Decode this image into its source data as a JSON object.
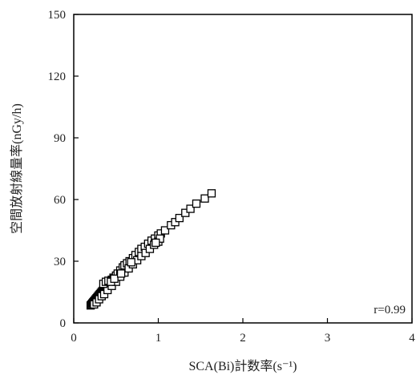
{
  "chart_data": {
    "type": "scatter",
    "title": "",
    "xlabel": "SCA(Bi)計数率(s⁻¹)",
    "ylabel": "空間放射線量率(nGy/h)",
    "xlim": [
      0,
      4
    ],
    "ylim": [
      0,
      150
    ],
    "x_ticks": [
      "0",
      "1",
      "2",
      "3",
      "4"
    ],
    "y_ticks": [
      "0",
      "30",
      "60",
      "90",
      "120",
      "150"
    ],
    "grid": false,
    "legend": "none",
    "marker": "open-square",
    "annotation": "r=0.99",
    "series": [
      {
        "points": [
          [
            0.2,
            8.5
          ],
          [
            0.21,
            9.0
          ],
          [
            0.22,
            9.5
          ],
          [
            0.23,
            10.0
          ],
          [
            0.24,
            10.5
          ],
          [
            0.25,
            11.0
          ],
          [
            0.26,
            11.5
          ],
          [
            0.27,
            12.0
          ],
          [
            0.28,
            12.5
          ],
          [
            0.29,
            13.0
          ],
          [
            0.3,
            13.5
          ],
          [
            0.31,
            14.0
          ],
          [
            0.32,
            14.5
          ],
          [
            0.33,
            15.0
          ],
          [
            0.34,
            15.5
          ],
          [
            0.35,
            16.0
          ],
          [
            0.36,
            16.5
          ],
          [
            0.37,
            17.0
          ],
          [
            0.38,
            17.5
          ],
          [
            0.39,
            18.0
          ],
          [
            0.4,
            18.5
          ],
          [
            0.41,
            19.0
          ],
          [
            0.42,
            19.5
          ],
          [
            0.43,
            20.0
          ],
          [
            0.45,
            21.0
          ],
          [
            0.47,
            22.0
          ],
          [
            0.5,
            23.0
          ],
          [
            0.52,
            24.0
          ],
          [
            0.55,
            25.5
          ],
          [
            0.58,
            27.0
          ],
          [
            0.6,
            28.0
          ],
          [
            0.63,
            29.0
          ],
          [
            0.66,
            30.0
          ],
          [
            0.7,
            31.5
          ],
          [
            0.73,
            33.0
          ],
          [
            0.77,
            34.5
          ],
          [
            0.8,
            36.0
          ],
          [
            0.84,
            37.0
          ],
          [
            0.88,
            38.5
          ],
          [
            0.92,
            40.0
          ],
          [
            0.96,
            41.0
          ],
          [
            1.0,
            42.5
          ],
          [
            1.03,
            43.5
          ],
          [
            1.08,
            45.0
          ],
          [
            1.15,
            47.5
          ],
          [
            1.2,
            49.0
          ],
          [
            1.25,
            51.0
          ],
          [
            1.32,
            53.5
          ],
          [
            1.38,
            55.5
          ],
          [
            1.45,
            58.0
          ],
          [
            1.55,
            60.5
          ],
          [
            1.63,
            63.0
          ],
          [
            0.24,
            9.0
          ],
          [
            0.27,
            10.0
          ],
          [
            0.3,
            11.5
          ],
          [
            0.33,
            13.0
          ],
          [
            0.36,
            14.0
          ],
          [
            0.4,
            16.0
          ],
          [
            0.45,
            18.0
          ],
          [
            0.5,
            20.0
          ],
          [
            0.55,
            22.5
          ],
          [
            0.6,
            24.5
          ],
          [
            0.65,
            26.5
          ],
          [
            0.7,
            28.5
          ],
          [
            0.75,
            30.5
          ],
          [
            0.8,
            32.5
          ],
          [
            0.85,
            34.0
          ],
          [
            0.9,
            36.0
          ],
          [
            0.95,
            38.0
          ],
          [
            1.0,
            39.5
          ],
          [
            0.35,
            19.0
          ],
          [
            0.38,
            20.0
          ],
          [
            0.41,
            20.5
          ],
          [
            0.44,
            20.0
          ],
          [
            0.48,
            21.5
          ],
          [
            1.02,
            41.0
          ],
          [
            0.97,
            39.0
          ],
          [
            0.56,
            24.0
          ],
          [
            0.68,
            29.5
          ]
        ]
      }
    ]
  }
}
